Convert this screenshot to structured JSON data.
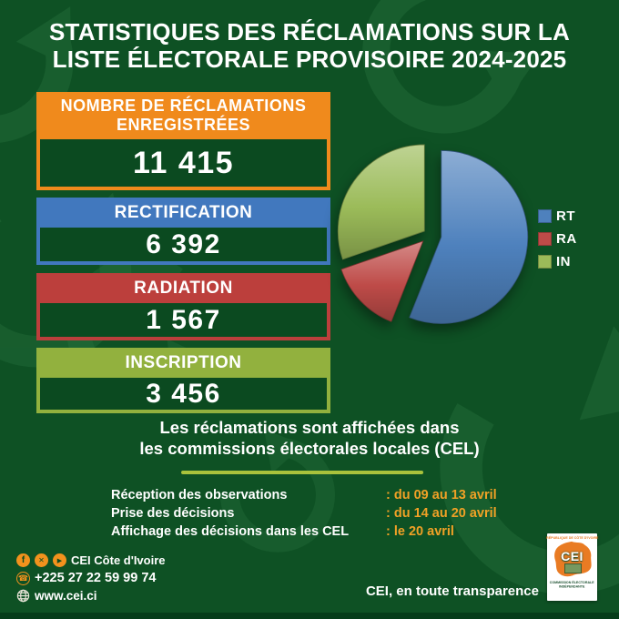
{
  "title": {
    "line1": "STATISTIQUES DES RÉCLAMATIONS SUR LA",
    "line2": "LISTE ÉLECTORALE PROVISOIRE 2024-2025"
  },
  "stats": [
    {
      "id": "total",
      "label_line1": "NOMBRE DE RÉCLAMATIONS",
      "label_line2": "ENREGISTRÉES",
      "value": "11 415",
      "color": "#F08A1C"
    },
    {
      "id": "rectification",
      "label": "RECTIFICATION",
      "value": "6 392",
      "color": "#4178BE"
    },
    {
      "id": "radiation",
      "label": "RADIATION",
      "value": "1 567",
      "color": "#BC3F3C"
    },
    {
      "id": "inscription",
      "label": "INSCRIPTION",
      "value": "3 456",
      "color": "#92B13E"
    }
  ],
  "chart_data": {
    "type": "pie",
    "labels": [
      "RT",
      "RA",
      "IN"
    ],
    "values": [
      6392,
      1567,
      3456
    ],
    "total": 11415,
    "colors": [
      "#4E81BD",
      "#BE4B48",
      "#9BBB59"
    ],
    "explode": [
      13,
      10,
      7
    ],
    "start_angle": 0,
    "legend_position": "right",
    "title": ""
  },
  "subtitle": {
    "line1": "Les réclamations sont affichées dans",
    "line2": "les commissions électorales locales (CEL)",
    "rule_color": "#A9C23C"
  },
  "schedule": {
    "accent_color": "#F0A126",
    "rows": [
      {
        "label": "Réception des observations",
        "value": ": du 09 au 13 avril"
      },
      {
        "label": "Prise des décisions",
        "value": ": du 14 au 20 avril"
      },
      {
        "label": "Affichage des décisions dans les CEL",
        "value": ": le 20 avril"
      }
    ]
  },
  "footer": {
    "social_name": "CEI Côte d'Ivoire",
    "phone": "+225 27 22 59 99 74",
    "website": "www.cei.ci",
    "tagline": "CEI, en toute transparence",
    "icon_color": "#F2921D",
    "logo": {
      "top_text": "RÉPUBLIQUE DE CÔTE D'IVOIRE",
      "acronym": "CEI",
      "bottom_line1": "COMMISSION ÉLECTORALE",
      "bottom_line2": "INDÉPENDANTE"
    }
  },
  "icons": {
    "facebook_glyph": "f",
    "x_glyph": "✕",
    "youtube_glyph": "▶",
    "phone_glyph": "☎"
  },
  "colors": {
    "background": "#0E5124",
    "pattern": "#2F7A44",
    "value_box": "#0B4A20",
    "bottom_strip": "#063C1A"
  }
}
